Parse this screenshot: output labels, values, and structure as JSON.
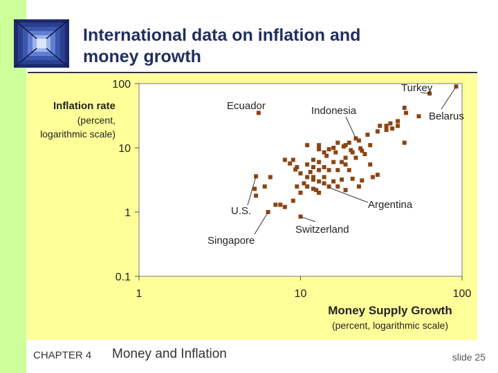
{
  "slide": {
    "title_line1": "International data on inflation and",
    "title_line2": "money growth",
    "chapter": "CHAPTER 4",
    "topic": "Money and Inflation",
    "slide_number": "slide 25"
  },
  "colors": {
    "band": "#ccff99",
    "chart_bg": "#ffff99",
    "marker": "#8b4513",
    "title": "#1f2f5f"
  },
  "icons": {
    "logo": "window-tunnel-logo-icon"
  },
  "chart_data": {
    "type": "scatter",
    "xscale": "log",
    "yscale": "log",
    "xlim": [
      1,
      100
    ],
    "ylim": [
      0.1,
      100
    ],
    "x_ticks": [
      1,
      10,
      100
    ],
    "x_tick_labels": [
      "1",
      "10",
      "100"
    ],
    "y_ticks": [
      0.1,
      1,
      10,
      100
    ],
    "y_tick_labels": [
      "0.1",
      "1",
      "10",
      "100"
    ],
    "ylabel_line1": "Inflation rate",
    "ylabel_line2": "(percent,",
    "ylabel_line3": "logarithmic scale)",
    "xlabel_line1": "Money Supply Growth",
    "xlabel_line2": "(percent, logarithmic scale)",
    "grid": false,
    "annotations": [
      {
        "label": "Turkey",
        "x": 63,
        "y": 70
      },
      {
        "label": "Ecuador",
        "x": 5.5,
        "y": 35
      },
      {
        "label": "Indonesia",
        "x": 22,
        "y": 14
      },
      {
        "label": "Belarus",
        "x": 92,
        "y": 90
      },
      {
        "label": "Argentina",
        "x": 15,
        "y": 2.4
      },
      {
        "label": "U.S.",
        "x": 5.3,
        "y": 3.6
      },
      {
        "label": "Switzerland",
        "x": 10,
        "y": 0.85
      },
      {
        "label": "Singapore",
        "x": 6.3,
        "y": 1.0
      }
    ],
    "points": [
      [
        92,
        90
      ],
      [
        63,
        70
      ],
      [
        5.5,
        35
      ],
      [
        44,
        42
      ],
      [
        45,
        35
      ],
      [
        54,
        31
      ],
      [
        40,
        26
      ],
      [
        36,
        24
      ],
      [
        31,
        22
      ],
      [
        34,
        22
      ],
      [
        40,
        22
      ],
      [
        37,
        20
      ],
      [
        34,
        19
      ],
      [
        30,
        18
      ],
      [
        26,
        16
      ],
      [
        44,
        12
      ],
      [
        27,
        11
      ],
      [
        22,
        14
      ],
      [
        23,
        13
      ],
      [
        20,
        12
      ],
      [
        19,
        11
      ],
      [
        17,
        12
      ],
      [
        16,
        10
      ],
      [
        15,
        9.5
      ],
      [
        13,
        9.5
      ],
      [
        14,
        8.5
      ],
      [
        24,
        9
      ],
      [
        25,
        8
      ],
      [
        21,
        8.5
      ],
      [
        22,
        7
      ],
      [
        19,
        7
      ],
      [
        18,
        6
      ],
      [
        19,
        5.5
      ],
      [
        16,
        6
      ],
      [
        13,
        6
      ],
      [
        14,
        5
      ],
      [
        12,
        5
      ],
      [
        11,
        5.5
      ],
      [
        13,
        4.5
      ],
      [
        15,
        4.5
      ],
      [
        17,
        4.5
      ],
      [
        20,
        4.5
      ],
      [
        27,
        5.5
      ],
      [
        12,
        6.5
      ],
      [
        13,
        11
      ],
      [
        11,
        11
      ],
      [
        9,
        6.5
      ],
      [
        8,
        6.5
      ],
      [
        9.5,
        5
      ],
      [
        10,
        4
      ],
      [
        11,
        3.5
      ],
      [
        12,
        3.5
      ],
      [
        13,
        3
      ],
      [
        14,
        3.5
      ],
      [
        16,
        3
      ],
      [
        15,
        2.5
      ],
      [
        17,
        2.5
      ],
      [
        19,
        2.2
      ],
      [
        21,
        3.3
      ],
      [
        9.5,
        2.5
      ],
      [
        10,
        2
      ],
      [
        9,
        1.5
      ],
      [
        8,
        1.2
      ],
      [
        7,
        1.3
      ],
      [
        11,
        2.5
      ],
      [
        13,
        2
      ],
      [
        12,
        2.3
      ],
      [
        10.5,
        2.8
      ],
      [
        12,
        3.2
      ],
      [
        5.3,
        3.6
      ],
      [
        6,
        2.5
      ],
      [
        5.2,
        2.3
      ],
      [
        6.5,
        3.5
      ],
      [
        5.3,
        1.8
      ],
      [
        6.3,
        1.0
      ],
      [
        7.5,
        1.3
      ],
      [
        10,
        0.85
      ],
      [
        12.5,
        2.2
      ],
      [
        18,
        3.2
      ],
      [
        14,
        2.8
      ],
      [
        23,
        2.5
      ],
      [
        24,
        3.1
      ],
      [
        30,
        3.8
      ],
      [
        28,
        3.5
      ],
      [
        11.5,
        4.2
      ],
      [
        9.3,
        4.6
      ],
      [
        8.6,
        5.7
      ],
      [
        14.5,
        7.5
      ],
      [
        16.5,
        8.5
      ],
      [
        18.5,
        10.5
      ],
      [
        20.5,
        9.2
      ],
      [
        23.5,
        9.8
      ]
    ]
  }
}
